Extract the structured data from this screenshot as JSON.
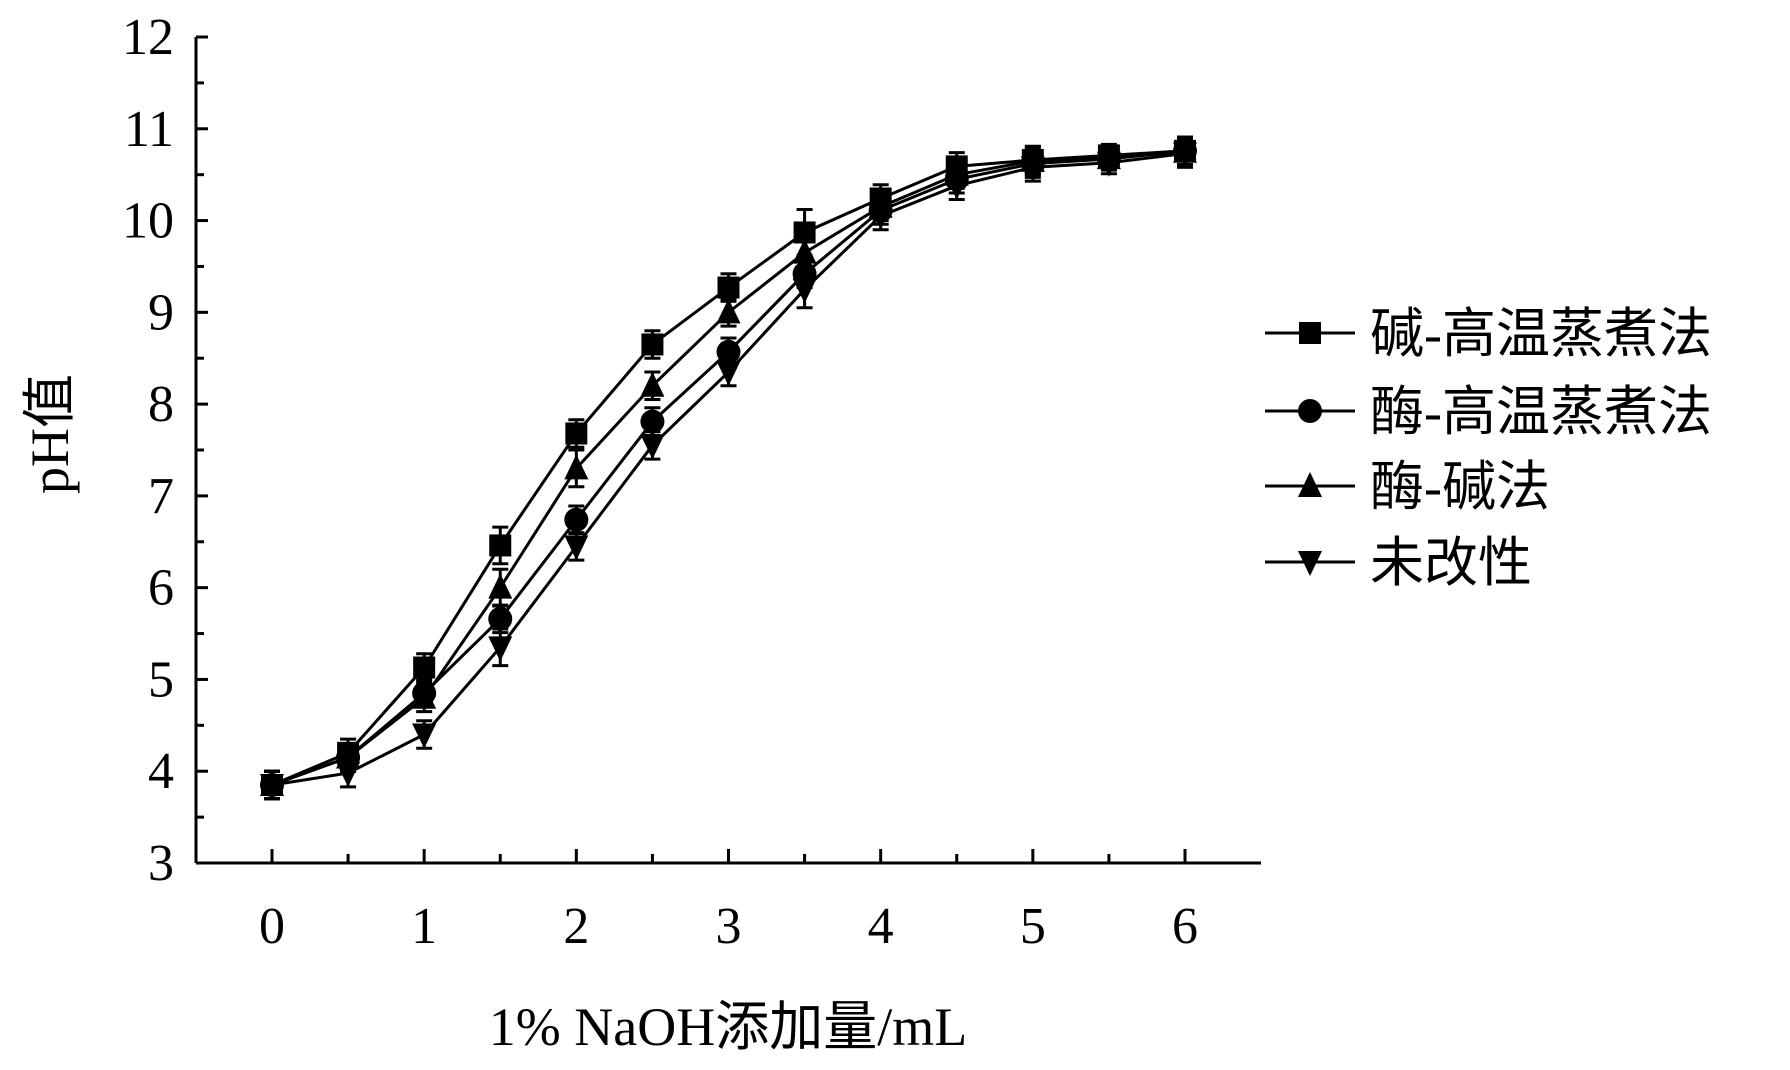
{
  "chart_data": {
    "type": "line",
    "title": "",
    "xlabel": "1% NaOH添加量/mL",
    "ylabel": "pH值",
    "xlim": [
      -0.5,
      7
    ],
    "ylim": [
      3,
      12
    ],
    "x_ticks": [
      0,
      1,
      2,
      3,
      4,
      5,
      6
    ],
    "y_ticks": [
      3,
      4,
      5,
      6,
      7,
      8,
      9,
      10,
      11,
      12
    ],
    "x": [
      0,
      0.5,
      1,
      1.5,
      2,
      2.5,
      3,
      3.5,
      4,
      4.5,
      5,
      5.5,
      6
    ],
    "legend_position": "right",
    "grid": false,
    "series": [
      {
        "name": "碱-高温蒸煮法",
        "marker": "square",
        "values": [
          3.85,
          4.2,
          5.13,
          6.46,
          7.68,
          8.65,
          9.27,
          9.87,
          10.24,
          10.59,
          10.66,
          10.71,
          10.76
        ],
        "errors": [
          0.15,
          0.15,
          0.15,
          0.2,
          0.15,
          0.15,
          0.15,
          0.25,
          0.15,
          0.15,
          0.15,
          0.12,
          0.15
        ]
      },
      {
        "name": "酶-高温蒸煮法",
        "marker": "circle",
        "values": [
          3.85,
          4.15,
          4.85,
          5.66,
          6.74,
          7.81,
          8.57,
          9.42,
          10.11,
          10.45,
          10.62,
          10.67,
          10.76
        ],
        "errors": [
          0.15,
          0.15,
          0.15,
          0.15,
          0.15,
          0.15,
          0.15,
          0.15,
          0.15,
          0.15,
          0.15,
          0.12,
          0.15
        ]
      },
      {
        "name": "酶-碱法",
        "marker": "triangle-up",
        "values": [
          3.85,
          4.15,
          4.8,
          6.0,
          7.3,
          8.2,
          9.0,
          9.65,
          10.15,
          10.5,
          10.65,
          10.68,
          10.75
        ],
        "errors": [
          0.15,
          0.15,
          0.15,
          0.2,
          0.2,
          0.15,
          0.15,
          0.15,
          0.15,
          0.15,
          0.15,
          0.12,
          0.15
        ]
      },
      {
        "name": "未改性",
        "marker": "triangle-down",
        "values": [
          3.85,
          3.98,
          4.4,
          5.35,
          6.45,
          7.55,
          8.35,
          9.25,
          10.05,
          10.38,
          10.58,
          10.63,
          10.73
        ],
        "errors": [
          0.15,
          0.15,
          0.15,
          0.2,
          0.15,
          0.15,
          0.15,
          0.2,
          0.15,
          0.15,
          0.15,
          0.12,
          0.15
        ]
      }
    ]
  }
}
